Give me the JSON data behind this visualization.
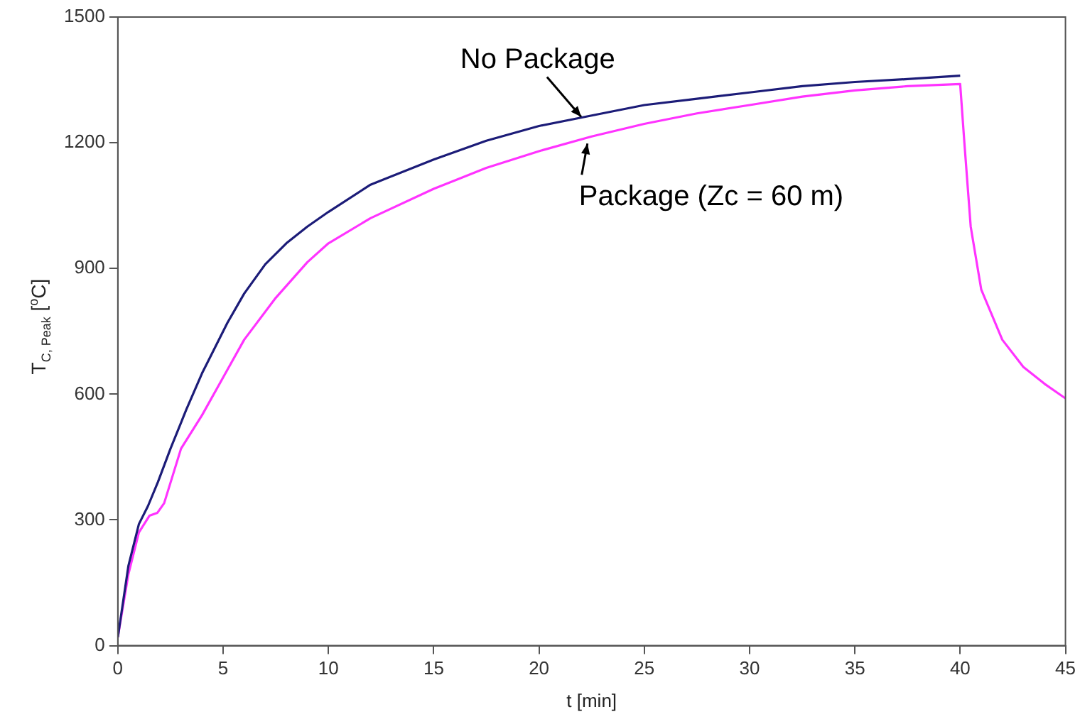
{
  "chart_data": {
    "type": "line",
    "xlabel": "t [min]",
    "ylabel": "T$_{C, Peak}$ [$^{o}$C]",
    "xlim": [
      0,
      45
    ],
    "ylim": [
      0,
      1500
    ],
    "xticks": [
      0,
      5,
      10,
      15,
      20,
      25,
      30,
      35,
      40,
      45
    ],
    "yticks": [
      0,
      300,
      600,
      900,
      1200,
      1500
    ],
    "grid": false,
    "legend": false,
    "marker": "none",
    "line_style": "solid",
    "annotations": [
      {
        "text": "No Package",
        "x": 22,
        "y": 1262
      },
      {
        "text": "Package (Zc = 60 m)",
        "x": 22.3,
        "y": 1198
      }
    ],
    "series": [
      {
        "color": "#1c1c78",
        "x": [
          0,
          0.5,
          1,
          1.43,
          1.9,
          2.5,
          3.25,
          4,
          5.2,
          6,
          7,
          8,
          9,
          10,
          12,
          15,
          17.5,
          20,
          22.5,
          25,
          27.5,
          30,
          32.5,
          35,
          37.5,
          40
        ],
        "values": [
          20,
          190,
          290,
          333,
          390,
          470,
          563,
          650,
          770,
          840,
          910,
          960,
          1000,
          1035,
          1100,
          1160,
          1205,
          1240,
          1265,
          1290,
          1305,
          1320,
          1335,
          1345,
          1352,
          1360
        ]
      },
      {
        "color": "#ff33ff",
        "x": [
          0,
          0.5,
          1,
          1.5,
          1.88,
          2.2,
          3,
          4,
          5,
          6,
          7.5,
          9,
          10,
          12,
          15,
          17.5,
          20,
          22.5,
          25,
          27.5,
          30,
          32.5,
          35,
          37.5,
          40,
          40.2,
          40.5,
          41,
          42,
          43,
          44,
          45
        ],
        "values": [
          20,
          170,
          270,
          310,
          317,
          340,
          470,
          550,
          640,
          730,
          830,
          915,
          960,
          1020,
          1090,
          1140,
          1180,
          1215,
          1245,
          1270,
          1290,
          1310,
          1325,
          1335,
          1340,
          1200,
          1000,
          850,
          730,
          665,
          625,
          590
        ]
      }
    ]
  }
}
